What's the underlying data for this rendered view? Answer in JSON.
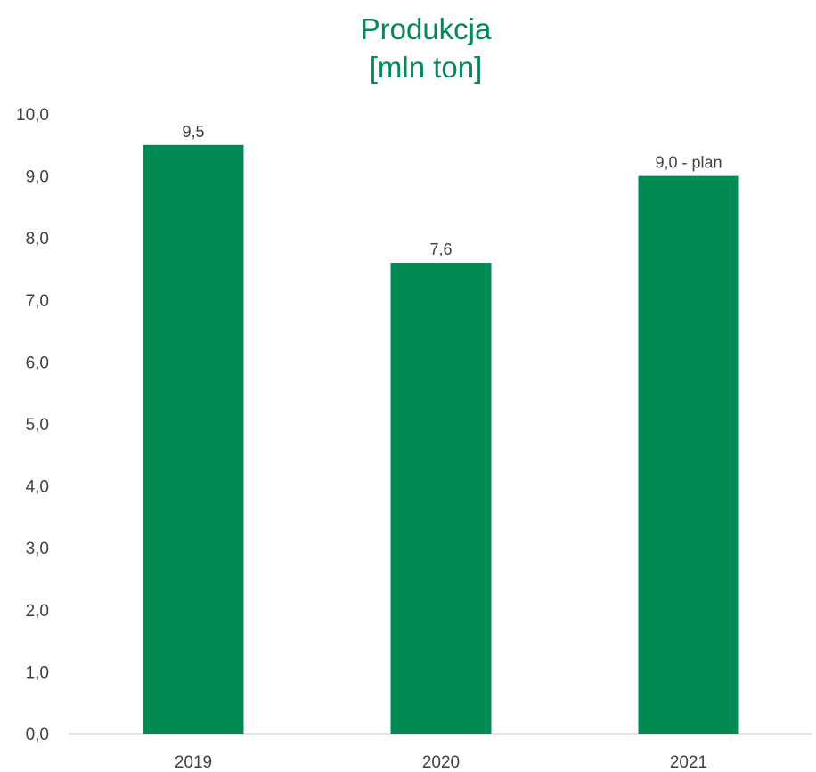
{
  "chart_data": {
    "type": "bar",
    "title": "Produkcja",
    "subtitle": "[mln ton]",
    "categories": [
      "2019",
      "2020",
      "2021"
    ],
    "values": [
      9.5,
      7.6,
      9.0
    ],
    "data_labels": [
      "9,5",
      "7,6",
      "9,0 - plan"
    ],
    "ylim": [
      0,
      10
    ],
    "yticks": [
      "0,0",
      "1,0",
      "2,0",
      "3,0",
      "4,0",
      "5,0",
      "6,0",
      "7,0",
      "8,0",
      "9,0",
      "10,0"
    ],
    "grid": false,
    "legend": "none",
    "bar_color": "#008a54",
    "title_color": "#008a54",
    "label_color": "#404040",
    "axis_color": "#d9d9d9"
  }
}
